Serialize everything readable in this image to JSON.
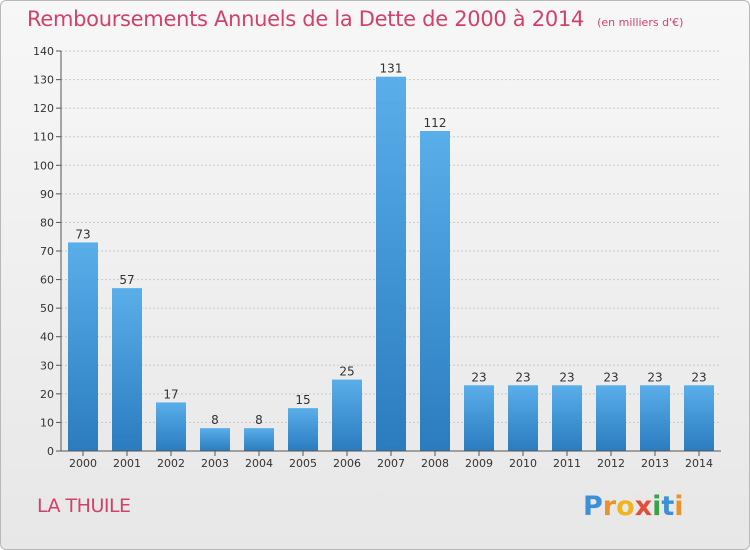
{
  "title": "Remboursements Annuels de la Dette de 2000 à 2014",
  "unit": "(en milliers d'€)",
  "commune": "LA THUILE",
  "logo": {
    "text": "Proxiti",
    "letters": [
      "P",
      "r",
      "o",
      "x",
      "i",
      "t",
      "i"
    ]
  },
  "colors": {
    "title": "#d0426a",
    "bar_top": "#5aaee9",
    "bar_bottom": "#2a7cbf",
    "grid": "#c9c9c9"
  },
  "chart_data": {
    "type": "bar",
    "categories": [
      "2000",
      "2001",
      "2002",
      "2003",
      "2004",
      "2005",
      "2006",
      "2007",
      "2008",
      "2009",
      "2010",
      "2011",
      "2012",
      "2013",
      "2014"
    ],
    "values": [
      73,
      57,
      17,
      8,
      8,
      15,
      25,
      131,
      112,
      23,
      23,
      23,
      23,
      23,
      23
    ],
    "ylim": [
      0,
      140
    ],
    "yticks": [
      0,
      10,
      20,
      30,
      40,
      50,
      60,
      70,
      80,
      90,
      100,
      110,
      120,
      130,
      140
    ],
    "grid": true
  }
}
